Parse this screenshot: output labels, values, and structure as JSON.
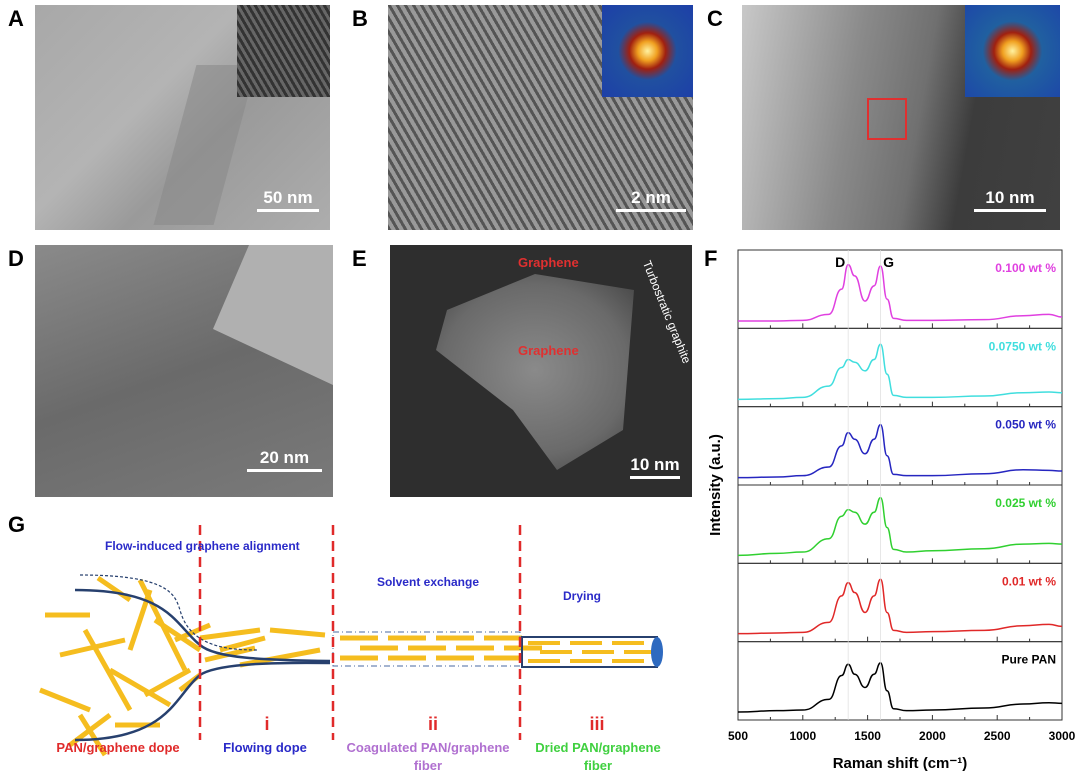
{
  "panels": {
    "A": {
      "label": "A",
      "scale_bar": "50 nm"
    },
    "B": {
      "label": "B",
      "scale_bar": "2 nm"
    },
    "C": {
      "label": "C",
      "scale_bar": "10 nm"
    },
    "D": {
      "label": "D",
      "scale_bar": "20 nm"
    },
    "E": {
      "label": "E",
      "scale_bar": "10 nm",
      "annotations": [
        "Graphene",
        "Graphene",
        "Turbostratic graphite"
      ]
    },
    "F": {
      "label": "F",
      "peak_labels": [
        "D",
        "G"
      ]
    },
    "G": {
      "label": "G",
      "top_labels": [
        "Flow-induced graphene alignment",
        "Solvent exchange",
        "Drying"
      ],
      "stage_numerals": [
        "i",
        "ii",
        "iii"
      ],
      "bottom_labels": [
        {
          "text": "PAN/graphene dope",
          "color": "#e02a2a"
        },
        {
          "text": "Flowing dope",
          "color": "#2a2ac8"
        },
        {
          "text": "Coagulated PAN/graphene fiber",
          "color": "#b070d0"
        },
        {
          "text": "Dried PAN/graphene fiber",
          "color": "#40d040"
        }
      ],
      "colors": {
        "graphene": "#f5bd1f",
        "channel": "#27406e",
        "divider": "#e02a2a",
        "text_blue": "#2a2ac8"
      }
    }
  },
  "chart_data": {
    "type": "line",
    "xlabel": "Raman shift (cm⁻¹)",
    "ylabel": "Intensity (a.u.)",
    "xlim": [
      500,
      3000
    ],
    "xticks": [
      500,
      1000,
      1500,
      2000,
      2500,
      3000
    ],
    "layout": "stacked panels, top to bottom",
    "x": [
      500,
      800,
      1000,
      1200,
      1300,
      1350,
      1400,
      1480,
      1550,
      1600,
      1650,
      1700,
      1800,
      2000,
      2400,
      2700,
      2900,
      3000
    ],
    "series": [
      {
        "name": "0.100 wt %",
        "color": "#e040e0",
        "values": [
          0.02,
          0.02,
          0.03,
          0.12,
          0.5,
          0.87,
          0.7,
          0.32,
          0.55,
          0.85,
          0.35,
          0.06,
          0.03,
          0.03,
          0.04,
          0.1,
          0.12,
          0.08
        ]
      },
      {
        "name": "0.0750 wt %",
        "color": "#40dede",
        "values": [
          0.02,
          0.03,
          0.05,
          0.22,
          0.5,
          0.62,
          0.58,
          0.45,
          0.62,
          0.85,
          0.4,
          0.08,
          0.05,
          0.05,
          0.07,
          0.12,
          0.13,
          0.12
        ]
      },
      {
        "name": "0.050 wt %",
        "color": "#2626c0",
        "values": [
          0.02,
          0.03,
          0.05,
          0.18,
          0.5,
          0.7,
          0.6,
          0.38,
          0.6,
          0.82,
          0.35,
          0.07,
          0.05,
          0.05,
          0.08,
          0.14,
          0.13,
          0.12
        ]
      },
      {
        "name": "0.025 wt %",
        "color": "#30d030",
        "values": [
          0.03,
          0.06,
          0.08,
          0.28,
          0.62,
          0.72,
          0.68,
          0.5,
          0.68,
          0.9,
          0.45,
          0.12,
          0.08,
          0.1,
          0.13,
          0.2,
          0.21,
          0.2
        ]
      },
      {
        "name": "0.01 wt %",
        "color": "#e02828",
        "values": [
          0.03,
          0.04,
          0.05,
          0.2,
          0.6,
          0.8,
          0.65,
          0.35,
          0.6,
          0.85,
          0.35,
          0.08,
          0.05,
          0.06,
          0.08,
          0.15,
          0.17,
          0.14
        ]
      },
      {
        "name": "Pure PAN",
        "color": "#000000",
        "values": [
          0.03,
          0.05,
          0.06,
          0.22,
          0.58,
          0.75,
          0.6,
          0.4,
          0.6,
          0.77,
          0.35,
          0.08,
          0.05,
          0.06,
          0.09,
          0.15,
          0.17,
          0.16
        ]
      }
    ]
  }
}
